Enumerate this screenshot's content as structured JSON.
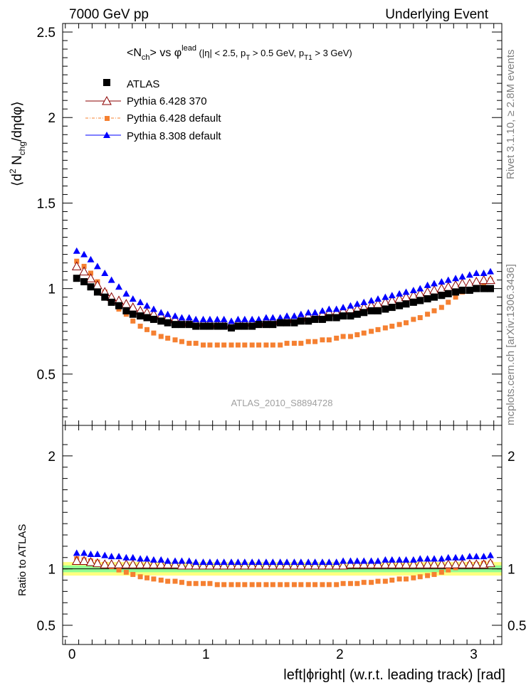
{
  "header": {
    "left": "7000 GeV pp",
    "right": "Underlying Event"
  },
  "side_text": {
    "rivet": "Rivet 3.1.10, ≥ 2.8M events",
    "mcplots": "mcplots.cern.ch [arXiv:1306.3436]"
  },
  "watermark": "ATLAS_2010_S8894728",
  "colors": {
    "atlas": "#000000",
    "py6_370": "#8b0000",
    "py6_default": "#f58031",
    "py8": "#0000ff",
    "band_inner": "#93ff93",
    "band_outer": "#ffff80"
  },
  "chart_data": [
    {
      "type": "scatter",
      "panel": "main",
      "title_parts": {
        "a": "<N",
        "a_sub": "ch",
        "b": "> vs φ",
        "b_sup": "lead",
        "c": " (|η| < 2.5, p",
        "c_sub": "T",
        "d": " > 0.5 GeV, p",
        "d_sub": "T1",
        "e": " > 3 GeV)"
      },
      "ylabel_parts": {
        "a": "⟨d",
        "a_sup": "2",
        "b": " N",
        "b_sub": "chg",
        "c": "/dηdφ⟩"
      },
      "xlim": [
        -0.07,
        3.21
      ],
      "ylim": [
        0.2,
        2.55
      ],
      "yticks": [
        0.5,
        1,
        1.5,
        2,
        2.5
      ],
      "ytick_labels": [
        "0.5",
        "1",
        "1.5",
        "2",
        "2.5"
      ],
      "x": [
        0.0524,
        0.1571,
        0.2618,
        0.3665,
        0.4712,
        0.576,
        0.6807,
        0.7854,
        0.8901,
        0.9948,
        1.0996,
        1.2043,
        1.309,
        1.4137,
        1.5184,
        1.6232,
        1.7279,
        1.8326,
        1.9373,
        2.042,
        2.1468,
        2.2515,
        2.3562,
        2.4609,
        2.5656,
        2.6704,
        2.7751,
        2.8798,
        2.9845,
        3.0892
      ],
      "series": [
        {
          "name": "ATLAS",
          "marker": "square",
          "x": [
            0.035,
            0.09,
            0.14,
            0.19,
            0.245,
            0.295,
            0.35,
            0.405,
            0.455,
            0.51,
            0.56,
            0.61,
            0.665,
            0.715,
            0.77,
            0.82,
            0.875,
            0.925,
            0.98,
            1.03,
            1.085,
            1.135,
            1.19,
            1.24,
            1.29,
            1.345,
            1.395,
            1.45,
            1.5,
            1.555,
            1.605,
            1.66,
            1.71,
            1.765,
            1.815,
            1.87,
            1.92,
            1.975,
            2.025,
            2.08,
            2.13,
            2.18,
            2.235,
            2.285,
            2.34,
            2.39,
            2.445,
            2.495,
            2.55,
            2.6,
            2.655,
            2.705,
            2.76,
            2.81,
            2.865,
            2.915,
            2.97,
            3.02,
            3.075,
            3.125
          ],
          "y": [
            1.06,
            1.04,
            1.01,
            0.98,
            0.95,
            0.92,
            0.9,
            0.87,
            0.85,
            0.84,
            0.83,
            0.82,
            0.81,
            0.8,
            0.79,
            0.79,
            0.79,
            0.78,
            0.78,
            0.78,
            0.78,
            0.78,
            0.77,
            0.78,
            0.78,
            0.78,
            0.79,
            0.79,
            0.79,
            0.8,
            0.8,
            0.8,
            0.81,
            0.81,
            0.82,
            0.82,
            0.83,
            0.83,
            0.84,
            0.84,
            0.85,
            0.86,
            0.87,
            0.87,
            0.88,
            0.89,
            0.9,
            0.91,
            0.92,
            0.93,
            0.94,
            0.95,
            0.96,
            0.97,
            0.98,
            0.99,
            0.99,
            1.0,
            1.0,
            1.0
          ]
        },
        {
          "name": "Pythia 6.428 370",
          "marker": "open-triangle",
          "x": [
            0.035,
            0.09,
            0.14,
            0.19,
            0.245,
            0.295,
            0.35,
            0.405,
            0.455,
            0.51,
            0.56,
            0.61,
            0.665,
            0.715,
            0.77,
            0.82,
            0.875,
            0.925,
            0.98,
            1.03,
            1.085,
            1.135,
            1.19,
            1.24,
            1.29,
            1.345,
            1.395,
            1.45,
            1.5,
            1.555,
            1.605,
            1.66,
            1.71,
            1.765,
            1.815,
            1.87,
            1.92,
            1.975,
            2.025,
            2.08,
            2.13,
            2.18,
            2.235,
            2.285,
            2.34,
            2.39,
            2.445,
            2.495,
            2.55,
            2.6,
            2.655,
            2.705,
            2.76,
            2.81,
            2.865,
            2.915,
            2.97,
            3.02,
            3.075,
            3.125
          ],
          "y": [
            1.13,
            1.1,
            1.06,
            1.02,
            0.98,
            0.95,
            0.93,
            0.91,
            0.89,
            0.87,
            0.86,
            0.85,
            0.84,
            0.83,
            0.82,
            0.81,
            0.8,
            0.8,
            0.8,
            0.8,
            0.79,
            0.79,
            0.79,
            0.8,
            0.8,
            0.8,
            0.8,
            0.81,
            0.81,
            0.82,
            0.82,
            0.83,
            0.83,
            0.84,
            0.84,
            0.85,
            0.86,
            0.86,
            0.87,
            0.88,
            0.88,
            0.89,
            0.9,
            0.91,
            0.92,
            0.93,
            0.94,
            0.95,
            0.96,
            0.97,
            0.98,
            0.99,
            1.0,
            1.01,
            1.02,
            1.03,
            1.03,
            1.04,
            1.05,
            1.05
          ]
        },
        {
          "name": "Pythia 6.428 default",
          "marker": "square-small",
          "x": [
            0.035,
            0.09,
            0.14,
            0.19,
            0.245,
            0.295,
            0.35,
            0.405,
            0.455,
            0.51,
            0.56,
            0.61,
            0.665,
            0.715,
            0.77,
            0.82,
            0.875,
            0.925,
            0.98,
            1.03,
            1.085,
            1.135,
            1.19,
            1.24,
            1.29,
            1.345,
            1.395,
            1.45,
            1.5,
            1.555,
            1.605,
            1.66,
            1.71,
            1.765,
            1.815,
            1.87,
            1.92,
            1.975,
            2.025,
            2.08,
            2.13,
            2.18,
            2.235,
            2.285,
            2.34,
            2.39,
            2.445,
            2.495,
            2.55,
            2.6,
            2.655,
            2.705,
            2.76,
            2.81,
            2.865,
            2.915,
            2.97,
            3.02,
            3.075,
            3.125
          ],
          "y": [
            1.16,
            1.13,
            1.09,
            1.04,
            0.98,
            0.93,
            0.88,
            0.85,
            0.81,
            0.78,
            0.76,
            0.74,
            0.72,
            0.71,
            0.7,
            0.69,
            0.68,
            0.68,
            0.67,
            0.67,
            0.67,
            0.67,
            0.67,
            0.67,
            0.67,
            0.67,
            0.67,
            0.67,
            0.67,
            0.67,
            0.68,
            0.68,
            0.68,
            0.69,
            0.69,
            0.7,
            0.7,
            0.71,
            0.72,
            0.72,
            0.73,
            0.74,
            0.75,
            0.76,
            0.77,
            0.78,
            0.79,
            0.8,
            0.82,
            0.83,
            0.85,
            0.87,
            0.89,
            0.92,
            0.95,
            0.98,
            1.0,
            1.02,
            1.03,
            1.05
          ]
        },
        {
          "name": "Pythia 8.308 default",
          "marker": "filled-triangle",
          "x": [
            0.035,
            0.09,
            0.14,
            0.19,
            0.245,
            0.295,
            0.35,
            0.405,
            0.455,
            0.51,
            0.56,
            0.61,
            0.665,
            0.715,
            0.77,
            0.82,
            0.875,
            0.925,
            0.98,
            1.03,
            1.085,
            1.135,
            1.19,
            1.24,
            1.29,
            1.345,
            1.395,
            1.45,
            1.5,
            1.555,
            1.605,
            1.66,
            1.71,
            1.765,
            1.815,
            1.87,
            1.92,
            1.975,
            2.025,
            2.08,
            2.13,
            2.18,
            2.235,
            2.285,
            2.34,
            2.39,
            2.445,
            2.495,
            2.55,
            2.6,
            2.655,
            2.705,
            2.76,
            2.81,
            2.865,
            2.915,
            2.97,
            3.02,
            3.075,
            3.125
          ],
          "y": [
            1.22,
            1.2,
            1.17,
            1.13,
            1.09,
            1.05,
            1.01,
            0.97,
            0.94,
            0.92,
            0.9,
            0.88,
            0.86,
            0.85,
            0.84,
            0.83,
            0.83,
            0.82,
            0.82,
            0.82,
            0.82,
            0.82,
            0.81,
            0.82,
            0.82,
            0.82,
            0.82,
            0.83,
            0.83,
            0.83,
            0.84,
            0.84,
            0.85,
            0.86,
            0.86,
            0.87,
            0.88,
            0.88,
            0.89,
            0.9,
            0.91,
            0.92,
            0.93,
            0.94,
            0.95,
            0.96,
            0.97,
            0.98,
            0.99,
            1.0,
            1.02,
            1.03,
            1.04,
            1.05,
            1.06,
            1.07,
            1.08,
            1.09,
            1.09,
            1.1
          ]
        }
      ]
    },
    {
      "type": "scatter",
      "panel": "ratio",
      "ylabel": "Ratio to ATLAS",
      "xlabel": "left|ϕright| (w.r.t. leading track) [rad]",
      "xlim": [
        -0.07,
        3.21
      ],
      "ylim": [
        0.33,
        2.27
      ],
      "xticks": [
        0,
        1,
        2,
        3
      ],
      "xtick_labels": [
        "0",
        "1",
        "2",
        "3"
      ],
      "yticks": [
        0.5,
        1,
        2
      ],
      "ytick_labels": [
        "0.5",
        "1",
        "2"
      ],
      "bands": {
        "inner": [
          0.97,
          1.03
        ],
        "outer": [
          0.94,
          1.06
        ]
      },
      "series": [
        {
          "name": "Pythia 6.428 370",
          "x": [
            0.035,
            0.09,
            0.14,
            0.19,
            0.245,
            0.295,
            0.35,
            0.405,
            0.455,
            0.51,
            0.56,
            0.61,
            0.665,
            0.715,
            0.77,
            0.82,
            0.875,
            0.925,
            0.98,
            1.03,
            1.085,
            1.135,
            1.19,
            1.24,
            1.29,
            1.345,
            1.395,
            1.45,
            1.5,
            1.555,
            1.605,
            1.66,
            1.71,
            1.765,
            1.815,
            1.87,
            1.92,
            1.975,
            2.025,
            2.08,
            2.13,
            2.18,
            2.235,
            2.285,
            2.34,
            2.39,
            2.445,
            2.495,
            2.55,
            2.6,
            2.655,
            2.705,
            2.76,
            2.81,
            2.865,
            2.915,
            2.97,
            3.02,
            3.075,
            3.125
          ],
          "y": [
            1.07,
            1.07,
            1.06,
            1.05,
            1.04,
            1.04,
            1.04,
            1.04,
            1.04,
            1.04,
            1.04,
            1.04,
            1.04,
            1.04,
            1.04,
            1.03,
            1.03,
            1.03,
            1.03,
            1.03,
            1.03,
            1.03,
            1.03,
            1.03,
            1.03,
            1.03,
            1.03,
            1.03,
            1.03,
            1.03,
            1.03,
            1.03,
            1.03,
            1.03,
            1.03,
            1.03,
            1.03,
            1.03,
            1.03,
            1.04,
            1.04,
            1.04,
            1.04,
            1.04,
            1.04,
            1.04,
            1.04,
            1.04,
            1.04,
            1.04,
            1.04,
            1.04,
            1.04,
            1.04,
            1.04,
            1.04,
            1.04,
            1.04,
            1.04,
            1.05
          ]
        },
        {
          "name": "Pythia 6.428 default",
          "x": [
            0.035,
            0.09,
            0.14,
            0.19,
            0.245,
            0.295,
            0.35,
            0.405,
            0.455,
            0.51,
            0.56,
            0.61,
            0.665,
            0.715,
            0.77,
            0.82,
            0.875,
            0.925,
            0.98,
            1.03,
            1.085,
            1.135,
            1.19,
            1.24,
            1.29,
            1.345,
            1.395,
            1.45,
            1.5,
            1.555,
            1.605,
            1.66,
            1.71,
            1.765,
            1.815,
            1.87,
            1.92,
            1.975,
            2.025,
            2.08,
            2.13,
            2.18,
            2.235,
            2.285,
            2.34,
            2.39,
            2.445,
            2.495,
            2.55,
            2.6,
            2.655,
            2.705,
            2.76,
            2.81,
            2.865,
            2.915,
            2.97,
            3.02,
            3.075,
            3.125
          ],
          "y": [
            1.09,
            1.08,
            1.07,
            1.06,
            1.04,
            1.02,
            0.99,
            0.97,
            0.95,
            0.93,
            0.92,
            0.91,
            0.9,
            0.89,
            0.89,
            0.88,
            0.87,
            0.87,
            0.87,
            0.87,
            0.86,
            0.86,
            0.86,
            0.86,
            0.86,
            0.86,
            0.86,
            0.86,
            0.86,
            0.86,
            0.86,
            0.86,
            0.86,
            0.86,
            0.86,
            0.86,
            0.86,
            0.86,
            0.87,
            0.87,
            0.87,
            0.88,
            0.88,
            0.89,
            0.89,
            0.9,
            0.91,
            0.91,
            0.92,
            0.93,
            0.94,
            0.95,
            0.97,
            0.99,
            1.01,
            1.03,
            1.04,
            1.04,
            1.05,
            1.05
          ]
        },
        {
          "name": "Pythia 8.308 default",
          "x": [
            0.035,
            0.09,
            0.14,
            0.19,
            0.245,
            0.295,
            0.35,
            0.405,
            0.455,
            0.51,
            0.56,
            0.61,
            0.665,
            0.715,
            0.77,
            0.82,
            0.875,
            0.925,
            0.98,
            1.03,
            1.085,
            1.135,
            1.19,
            1.24,
            1.29,
            1.345,
            1.395,
            1.45,
            1.5,
            1.555,
            1.605,
            1.66,
            1.71,
            1.765,
            1.815,
            1.87,
            1.92,
            1.975,
            2.025,
            2.08,
            2.13,
            2.18,
            2.235,
            2.285,
            2.34,
            2.39,
            2.445,
            2.495,
            2.55,
            2.6,
            2.655,
            2.705,
            2.76,
            2.81,
            2.865,
            2.915,
            2.97,
            3.02,
            3.075,
            3.125
          ],
          "y": [
            1.14,
            1.14,
            1.13,
            1.13,
            1.12,
            1.11,
            1.11,
            1.1,
            1.1,
            1.09,
            1.09,
            1.08,
            1.08,
            1.07,
            1.07,
            1.07,
            1.07,
            1.06,
            1.06,
            1.06,
            1.06,
            1.06,
            1.06,
            1.06,
            1.06,
            1.06,
            1.06,
            1.06,
            1.06,
            1.06,
            1.06,
            1.06,
            1.06,
            1.06,
            1.06,
            1.06,
            1.06,
            1.06,
            1.07,
            1.07,
            1.07,
            1.07,
            1.07,
            1.07,
            1.08,
            1.08,
            1.08,
            1.08,
            1.08,
            1.09,
            1.09,
            1.09,
            1.09,
            1.1,
            1.1,
            1.1,
            1.11,
            1.11,
            1.11,
            1.12
          ]
        }
      ]
    }
  ]
}
